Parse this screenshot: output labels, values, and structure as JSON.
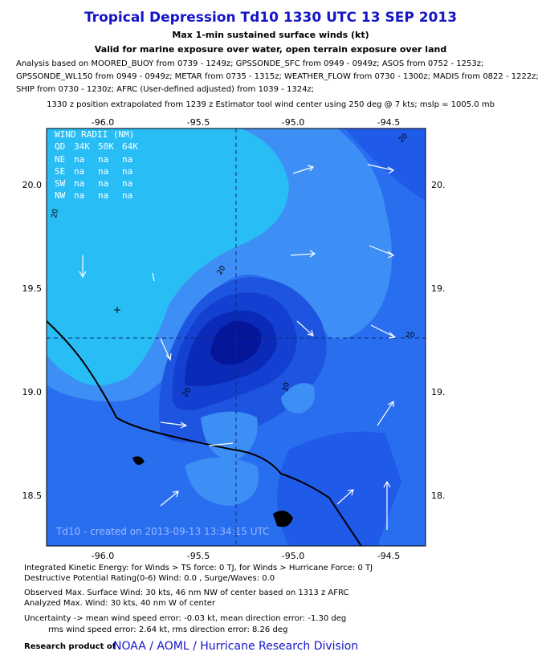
{
  "header": {
    "title": "Tropical Depression Td10 1330 UTC 13 SEP 2013",
    "subtitle": "Max 1-min sustained surface winds (kt)",
    "validity": "Valid for marine exposure over water, open terrain exposure over land",
    "analysis": [
      "Analysis based on MOORED_BUOY from 0739 - 1249z; GPSSONDE_SFC from 0949 - 0949z; ASOS from 0752 - 1253z;",
      "GPSSONDE_WL150 from 0949 - 0949z; METAR from 0735 - 1315z; WEATHER_FLOW from 0730 - 1300z; MADIS from 0822 - 1222z;",
      "SHIP from 0730 - 1230z; AFRC (User-defined adjusted) from 1039 - 1324z;"
    ],
    "position": "1330 z position extrapolated from 1239 z Estimator tool wind center using 250 deg @ 7 kts; mslp = 1005.0 mb"
  },
  "map": {
    "top_ticks": [
      "-96.0",
      "-95.5",
      "-95.0",
      "-94.5"
    ],
    "bottom_ticks": [
      "-96.0",
      "-95.5",
      "-95.0",
      "-94.5"
    ],
    "left_ticks": [
      "20.0",
      "19.5",
      "19.0",
      "18.5"
    ],
    "right_ticks": [
      "20.",
      "19.",
      "19.",
      "18."
    ],
    "wind_radii": {
      "title": "WIND RADII (NM)",
      "columns": [
        "QD",
        "34K",
        "50K",
        "64K"
      ],
      "rows": [
        [
          "NE",
          "na",
          "na",
          "na"
        ],
        [
          "SE",
          "na",
          "na",
          "na"
        ],
        [
          "SW",
          "na",
          "na",
          "na"
        ],
        [
          "NW",
          "na",
          "na",
          "na"
        ]
      ]
    },
    "contour_labels": [
      "20",
      "20",
      "20",
      "20",
      "20",
      "20"
    ],
    "watermark": "Td10 - created on 2013-09-13 13:34:15 UTC"
  },
  "footer": {
    "energy": [
      "Integrated Kinetic Energy: for Winds > TS force: 0 TJ, for Winds > Hurricane Force: 0 TJ",
      "Destructive Potential Rating(0-6)  Wind: 0.0 , Surge/Waves: 0.0"
    ],
    "observed": [
      "Observed Max. Surface Wind: 30 kts, 46 nm NW of center based on 1313 z AFRC",
      "Analyzed Max. Wind: 30 kts, 40 nm  W of center"
    ],
    "uncertainty": [
      "Uncertainty -> mean wind speed error:  -0.03 kt, mean direction error:  -1.30 deg",
      "rms wind speed error: 2.64 kt, rms direction error: 8.26 deg"
    ],
    "credit": "Research product of",
    "org": "NOAA / AOML / Hurricane Research Division"
  }
}
